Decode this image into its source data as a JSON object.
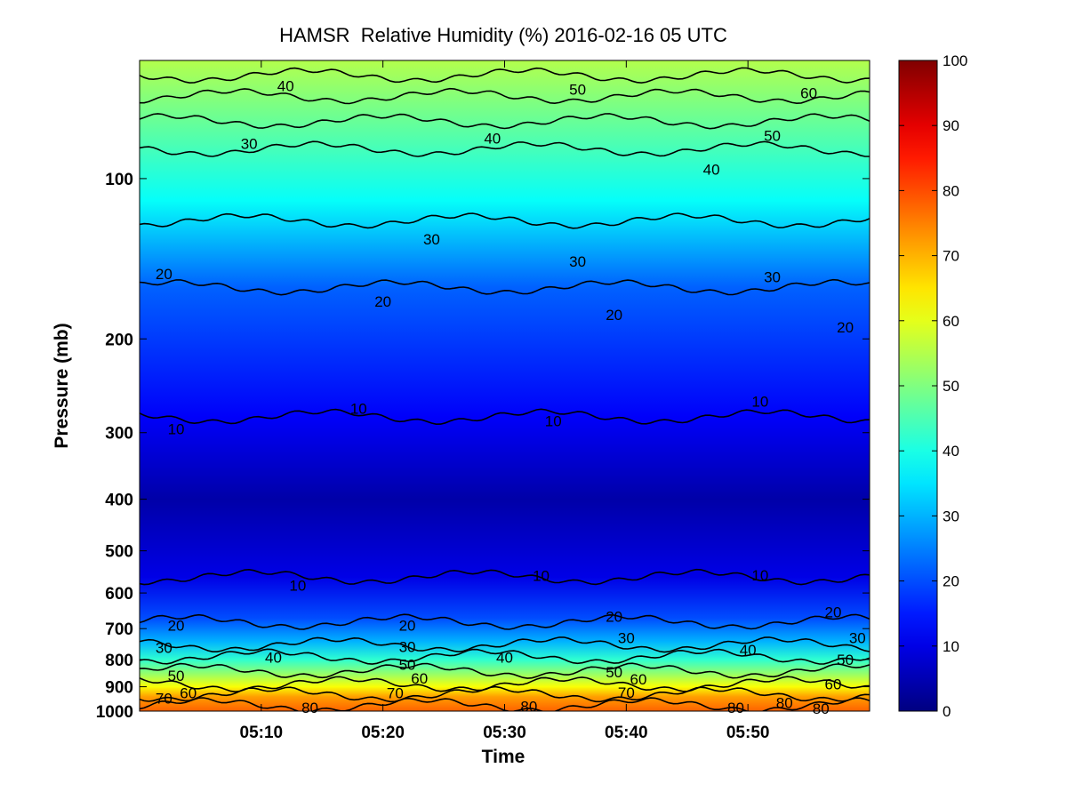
{
  "chart_data": {
    "type": "heatmap",
    "title": "HAMSR  Relative Humidity (%) 2016-02-16 05 UTC",
    "xlabel": "Time",
    "ylabel": "Pressure (mb)",
    "x_range": [
      "05:00",
      "06:00"
    ],
    "y_range": [
      1000,
      60
    ],
    "y_scale": "log",
    "y_reversed": true,
    "x_ticks": [
      "05:10",
      "05:20",
      "05:30",
      "05:40",
      "05:50"
    ],
    "y_ticks": [
      100,
      200,
      300,
      400,
      500,
      600,
      700,
      800,
      900,
      1000
    ],
    "colorbar": {
      "colormap": "jet",
      "range": [
        0,
        100
      ],
      "ticks": [
        0,
        10,
        20,
        30,
        40,
        50,
        60,
        70,
        80,
        90,
        100
      ]
    },
    "contour_levels": [
      10,
      20,
      30,
      40,
      50,
      60,
      70,
      80
    ],
    "contour_labels": [
      {
        "text": "40",
        "time": "05:12",
        "pressure": 67
      },
      {
        "text": "50",
        "time": "05:36",
        "pressure": 68
      },
      {
        "text": "60",
        "time": "05:55",
        "pressure": 69
      },
      {
        "text": "30",
        "time": "05:09",
        "pressure": 86
      },
      {
        "text": "40",
        "time": "05:29",
        "pressure": 84
      },
      {
        "text": "50",
        "time": "05:52",
        "pressure": 83
      },
      {
        "text": "40",
        "time": "05:47",
        "pressure": 96
      },
      {
        "text": "30",
        "time": "05:24",
        "pressure": 130
      },
      {
        "text": "30",
        "time": "05:36",
        "pressure": 143
      },
      {
        "text": "30",
        "time": "05:52",
        "pressure": 153
      },
      {
        "text": "20",
        "time": "05:02",
        "pressure": 151
      },
      {
        "text": "20",
        "time": "05:20",
        "pressure": 170
      },
      {
        "text": "20",
        "time": "05:39",
        "pressure": 180
      },
      {
        "text": "20",
        "time": "05:58",
        "pressure": 190
      },
      {
        "text": "10",
        "time": "05:03",
        "pressure": 295
      },
      {
        "text": "10",
        "time": "05:18",
        "pressure": 270
      },
      {
        "text": "10",
        "time": "05:34",
        "pressure": 285
      },
      {
        "text": "10",
        "time": "05:51",
        "pressure": 262
      },
      {
        "text": "10",
        "time": "05:13",
        "pressure": 581
      },
      {
        "text": "10",
        "time": "05:33",
        "pressure": 557
      },
      {
        "text": "10",
        "time": "05:51",
        "pressure": 555
      },
      {
        "text": "20",
        "time": "05:03",
        "pressure": 690
      },
      {
        "text": "20",
        "time": "05:22",
        "pressure": 690
      },
      {
        "text": "20",
        "time": "05:39",
        "pressure": 664
      },
      {
        "text": "20",
        "time": "05:57",
        "pressure": 652
      },
      {
        "text": "30",
        "time": "05:02",
        "pressure": 760
      },
      {
        "text": "30",
        "time": "05:22",
        "pressure": 757
      },
      {
        "text": "30",
        "time": "05:40",
        "pressure": 728
      },
      {
        "text": "30",
        "time": "05:59",
        "pressure": 728
      },
      {
        "text": "40",
        "time": "05:11",
        "pressure": 792
      },
      {
        "text": "40",
        "time": "05:30",
        "pressure": 792
      },
      {
        "text": "40",
        "time": "05:50",
        "pressure": 767
      },
      {
        "text": "50",
        "time": "05:03",
        "pressure": 858
      },
      {
        "text": "50",
        "time": "05:22",
        "pressure": 818
      },
      {
        "text": "50",
        "time": "05:39",
        "pressure": 845
      },
      {
        "text": "50",
        "time": "05:58",
        "pressure": 800
      },
      {
        "text": "60",
        "time": "05:04",
        "pressure": 925
      },
      {
        "text": "60",
        "time": "05:23",
        "pressure": 868
      },
      {
        "text": "60",
        "time": "05:41",
        "pressure": 870
      },
      {
        "text": "60",
        "time": "05:57",
        "pressure": 890
      },
      {
        "text": "70",
        "time": "05:02",
        "pressure": 945
      },
      {
        "text": "70",
        "time": "05:21",
        "pressure": 925
      },
      {
        "text": "70",
        "time": "05:40",
        "pressure": 922
      },
      {
        "text": "80",
        "time": "05:14",
        "pressure": 985
      },
      {
        "text": "80",
        "time": "05:32",
        "pressure": 980
      },
      {
        "text": "80",
        "time": "05:49",
        "pressure": 985
      },
      {
        "text": "80",
        "time": "05:53",
        "pressure": 965
      },
      {
        "text": "80",
        "time": "05:56",
        "pressure": 988
      }
    ]
  }
}
